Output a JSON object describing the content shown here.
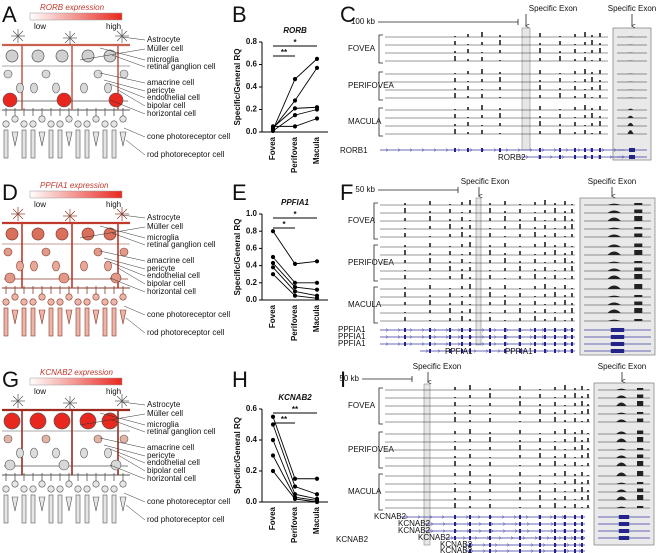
{
  "expression_panels": [
    {
      "letter": "A",
      "gene": "RORB",
      "label": "expression",
      "low": "low",
      "high": "high",
      "cells": [
        "Astrocyte",
        "Müller cell",
        "microglia",
        "retinal ganglion cell",
        "amacrine cell",
        "pericyte",
        "endothelial cell",
        "bipolar cell",
        "horizontal cell",
        "cone photoreceptor cell",
        "rod photoreceptor cell"
      ]
    },
    {
      "letter": "D",
      "gene": "PPFIA1",
      "label": "expression",
      "low": "low",
      "high": "high",
      "cells": [
        "Astrocyte",
        "Müller cell",
        "microglia",
        "retinal ganglion cell",
        "amacrine cell",
        "pericyte",
        "endothelial cell",
        "bipolar cell",
        "horizontal cell",
        "cone photoreceptor cell",
        "rod photoreceptor cell"
      ]
    },
    {
      "letter": "G",
      "gene": "KCNAB2",
      "label": "expression",
      "low": "low",
      "high": "high",
      "cells": [
        "Astrocyte",
        "Müller cell",
        "microglia",
        "retinal ganglion cell",
        "amacrine cell",
        "pericyte",
        "endothelial cell",
        "bipolar cell",
        "horizontal cell",
        "cone photoreceptor cell",
        "rod photoreceptor cell"
      ]
    }
  ],
  "chart_data": [
    {
      "type": "line",
      "letter": "B",
      "title": "RORB",
      "y_label": "Specific/General RQ",
      "categories": [
        "Fovea",
        "Perifovea",
        "Macula"
      ],
      "series": [
        {
          "color": "#000000",
          "values": [
            0.02,
            0.47,
            0.65
          ]
        },
        {
          "color": "#000000",
          "values": [
            0.03,
            0.28,
            0.57
          ]
        },
        {
          "color": "#000000",
          "values": [
            0.04,
            0.21,
            0.22
          ]
        },
        {
          "color": "#000000",
          "values": [
            0.01,
            0.15,
            0.2
          ]
        },
        {
          "color": "#000000",
          "values": [
            0.05,
            0.05,
            0.12
          ]
        }
      ],
      "ylim": [
        0,
        0.8
      ],
      "yticks": [
        {
          "value": 0,
          "label": "0.0"
        },
        0.2,
        0.4,
        0.6,
        0.8
      ],
      "annotations": [
        "**",
        "*"
      ]
    },
    {
      "type": "line",
      "letter": "E",
      "title": "PPFIA1",
      "y_label": "Specific/General RQ",
      "categories": [
        "Fovea",
        "Perifovea",
        "Macula"
      ],
      "series": [
        {
          "color": "#000000",
          "values": [
            0.8,
            0.42,
            0.45
          ]
        },
        {
          "color": "#000000",
          "values": [
            0.5,
            0.2,
            0.2
          ]
        },
        {
          "color": "#000000",
          "values": [
            0.43,
            0.15,
            0.12
          ]
        },
        {
          "color": "#000000",
          "values": [
            0.38,
            0.1,
            0.05
          ]
        },
        {
          "color": "#000000",
          "values": [
            0.3,
            0.05,
            0.02
          ]
        }
      ],
      "ylim": [
        0,
        1
      ],
      "yticks": [
        {
          "value": 0,
          "label": "0.0"
        },
        0.2,
        0.4,
        0.6,
        0.8,
        {
          "value": 1,
          "label": "1.0"
        }
      ],
      "annotations": [
        "*",
        "*"
      ]
    },
    {
      "type": "line",
      "letter": "H",
      "title": "KCNAB2",
      "y_label": "Specific/General RQ",
      "categories": [
        "Fovea",
        "Perifovea",
        "Macula"
      ],
      "series": [
        {
          "color": "#000000",
          "values": [
            0.55,
            0.15,
            0.15
          ]
        },
        {
          "color": "#000000",
          "values": [
            0.5,
            0.1,
            0.05
          ]
        },
        {
          "color": "#000000",
          "values": [
            0.4,
            0.05,
            0.02
          ]
        },
        {
          "color": "#000000",
          "values": [
            0.3,
            0.03,
            0.01
          ]
        },
        {
          "color": "#000000",
          "values": [
            0.2,
            0.02,
            0
          ]
        }
      ],
      "ylim": [
        0,
        0.6
      ],
      "yticks": [
        {
          "value": 0,
          "label": "0.0"
        },
        0.2,
        0.4,
        0.6
      ],
      "annotations": [
        "**",
        "**"
      ]
    }
  ],
  "genome_panels": [
    {
      "letter": "C",
      "scale": "100 kb",
      "exon_labels": [
        "Specific Exon",
        "Specific Exon"
      ],
      "groups": [
        "FOVEA",
        "PERIFOVEA",
        "MACULA"
      ],
      "genes": [
        "RORB1",
        "RORB2"
      ]
    },
    {
      "letter": "F",
      "scale": "50 kb",
      "exon_labels": [
        "Specific Exon",
        "Specific Exon"
      ],
      "groups": [
        "FOVEA",
        "PERIFOVEA",
        "MACULA"
      ],
      "genes": [
        "PPFIA1",
        "PPFIA1",
        "PPFIA1",
        "PPFIA1",
        "PPFIA1"
      ]
    },
    {
      "letter": "I",
      "scale": "50 kb",
      "exon_labels": [
        "Specific Exon",
        "Specific Exon"
      ],
      "groups": [
        "FOVEA",
        "PERIFOVEA",
        "MACULA"
      ],
      "genes": [
        "KCNAB2",
        "KCNAB2",
        "KCNAB2",
        "KCNAB2",
        "KCNAB2",
        "KCNAB2",
        "KCNAB2"
      ]
    }
  ]
}
